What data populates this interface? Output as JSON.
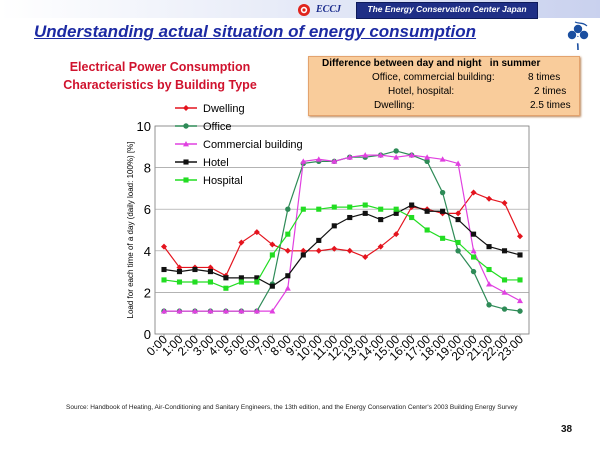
{
  "header": {
    "logo_text": "ECCJ",
    "org_name": "The Energy Conservation Center Japan",
    "title": "Understanding actual situation of energy consumption"
  },
  "summary": {
    "heading": "Difference between day and night   in summer",
    "rows": [
      {
        "label": "Office, commercial building:",
        "value": "8 times"
      },
      {
        "label": "Hotel, hospital:",
        "value": "2 times"
      },
      {
        "label": "Dwelling:",
        "value": "2.5 times"
      }
    ]
  },
  "chart_data": {
    "type": "line",
    "title": "Electrical Power Consumption",
    "subtitle": "Characteristics by Building Type",
    "ylabel": "Load for each time of a day (daily load: 100%) [%]",
    "xlabel": "",
    "ylim": [
      0,
      10
    ],
    "yticks": [
      "0",
      "2",
      "4",
      "6",
      "8",
      "10"
    ],
    "categories": [
      "0:00",
      "1:00",
      "2:00",
      "3:00",
      "4:00",
      "5:00",
      "6:00",
      "7:00",
      "8:00",
      "9:00",
      "10:00",
      "11:00",
      "12:00",
      "13:00",
      "14:00",
      "15:00",
      "16:00",
      "17:00",
      "18:00",
      "19:00",
      "20:00",
      "21:00",
      "22:00",
      "23:00"
    ],
    "grid": true,
    "legend_position": "top-left",
    "series": [
      {
        "name": "Dwelling",
        "color": "#e4141e",
        "marker": "diamond",
        "values": [
          4.2,
          3.2,
          3.2,
          3.2,
          2.8,
          4.4,
          4.9,
          4.3,
          4.0,
          4.0,
          4.0,
          4.1,
          4.0,
          3.7,
          4.2,
          4.8,
          6.1,
          6.0,
          5.8,
          5.8,
          6.8,
          6.5,
          6.3,
          4.7
        ]
      },
      {
        "name": "Office",
        "color": "#2e8b57",
        "marker": "circle",
        "values": [
          1.1,
          1.1,
          1.1,
          1.1,
          1.1,
          1.1,
          1.1,
          2.4,
          6.0,
          8.2,
          8.3,
          8.3,
          8.5,
          8.5,
          8.6,
          8.8,
          8.6,
          8.3,
          6.8,
          4.0,
          3.0,
          1.4,
          1.2,
          1.1
        ]
      },
      {
        "name": "Commercial building",
        "color": "#e040e0",
        "marker": "triangle",
        "values": [
          1.1,
          1.1,
          1.1,
          1.1,
          1.1,
          1.1,
          1.1,
          1.1,
          2.2,
          8.3,
          8.4,
          8.3,
          8.5,
          8.6,
          8.6,
          8.5,
          8.6,
          8.5,
          8.4,
          8.2,
          4.0,
          2.4,
          2.0,
          1.6
        ]
      },
      {
        "name": "Hotel",
        "color": "#111111",
        "marker": "square",
        "values": [
          3.1,
          3.0,
          3.1,
          3.0,
          2.7,
          2.7,
          2.7,
          2.3,
          2.8,
          3.8,
          4.5,
          5.2,
          5.6,
          5.8,
          5.5,
          5.8,
          6.2,
          5.9,
          5.9,
          5.5,
          4.8,
          4.2,
          4.0,
          3.8
        ]
      },
      {
        "name": "Hospital",
        "color": "#22dd22",
        "marker": "square",
        "values": [
          2.6,
          2.5,
          2.5,
          2.5,
          2.2,
          2.5,
          2.5,
          3.8,
          4.8,
          6.0,
          6.0,
          6.1,
          6.1,
          6.2,
          6.0,
          6.0,
          5.6,
          5.0,
          4.6,
          4.4,
          3.7,
          3.1,
          2.6,
          2.6
        ]
      }
    ]
  },
  "source_note": "Source:  Handbook of Heating, Air-Conditioning and Sanitary Engineers, the 13th edition, and the Energy Conservation Center's 2003 Building Energy Survey",
  "page_number": "38",
  "colors": {
    "title": "#1c2aa3",
    "chart_title": "#d0132e",
    "summary_box": "#f9cc9b",
    "banner": "#1f2f86"
  }
}
